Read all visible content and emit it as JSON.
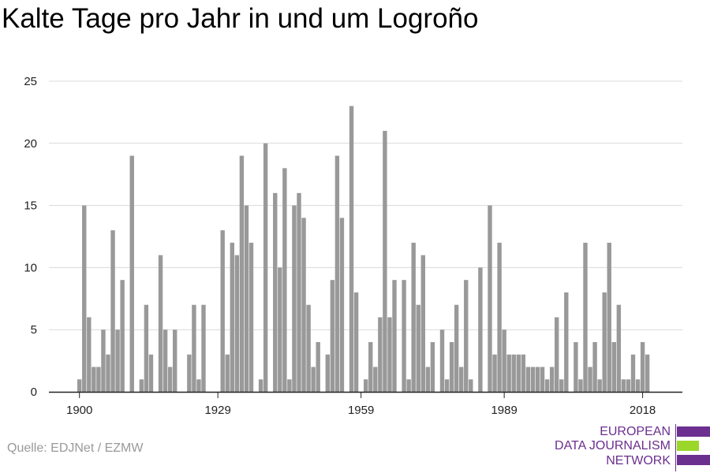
{
  "title": "Kalte Tage pro Jahr in und um Logroño",
  "source": "Quelle: EDJNet / EZMW",
  "logo": {
    "lines": [
      "EUROPEAN",
      "DATA JOURNALISM",
      "NETWORK"
    ],
    "colors": [
      "#6b2f8f",
      "#9bd72b",
      "#6b2f8f"
    ]
  },
  "chart_data": {
    "type": "bar",
    "title": "Kalte Tage pro Jahr in und um Logroño",
    "xlabel": "",
    "ylabel": "",
    "x_start": 1900,
    "x_end": 2018,
    "x_ticks": [
      1900,
      1929,
      1959,
      1989,
      2018
    ],
    "y_ticks": [
      0,
      5,
      10,
      15,
      20,
      25
    ],
    "ylim": [
      0,
      25
    ],
    "grid": true,
    "bar_color": "#999999",
    "values": [
      1,
      15,
      6,
      2,
      2,
      5,
      3,
      13,
      5,
      9,
      0,
      19,
      0,
      1,
      7,
      3,
      0,
      11,
      5,
      2,
      5,
      0,
      0,
      3,
      7,
      1,
      7,
      0,
      0,
      0,
      13,
      3,
      12,
      11,
      19,
      15,
      12,
      0,
      1,
      20,
      0,
      16,
      10,
      18,
      1,
      15,
      16,
      14,
      7,
      2,
      4,
      0,
      3,
      9,
      19,
      14,
      0,
      23,
      8,
      0,
      1,
      4,
      2,
      6,
      21,
      6,
      9,
      0,
      9,
      1,
      12,
      7,
      11,
      2,
      4,
      0,
      5,
      1,
      4,
      7,
      2,
      9,
      1,
      0,
      10,
      0,
      15,
      3,
      12,
      5,
      3,
      3,
      3,
      3,
      2,
      2,
      2,
      2,
      1,
      2,
      6,
      1,
      8,
      0,
      4,
      1,
      12,
      2,
      4,
      1,
      8,
      12,
      4,
      7,
      1,
      1,
      3,
      1,
      4,
      3
    ]
  }
}
